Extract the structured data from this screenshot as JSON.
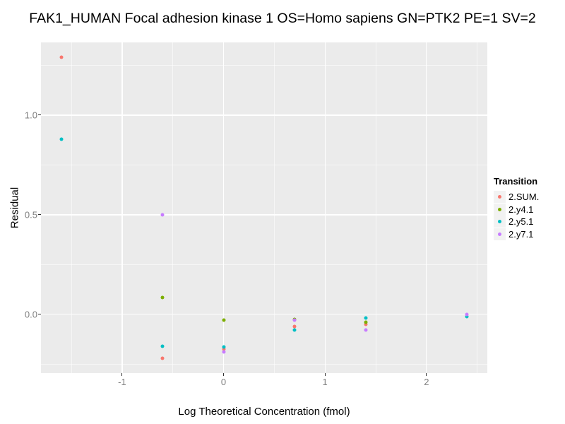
{
  "chart_data": {
    "type": "scatter",
    "title": "FAK1_HUMAN Focal adhesion kinase 1 OS=Homo sapiens GN=PTK2 PE=1 SV=2",
    "xlabel": "Log Theoretical Concentration (fmol)",
    "ylabel": "Residual",
    "xlim": [
      -1.8,
      2.6
    ],
    "ylim": [
      -0.2955,
      1.3655
    ],
    "x_ticks": [
      {
        "value": -1,
        "label": "-1"
      },
      {
        "value": 0,
        "label": "0"
      },
      {
        "value": 1,
        "label": "1"
      },
      {
        "value": 2,
        "label": "2"
      }
    ],
    "y_ticks": [
      {
        "value": 0.0,
        "label": "0.0"
      },
      {
        "value": 0.5,
        "label": "0.5"
      },
      {
        "value": 1.0,
        "label": "1.0"
      }
    ],
    "x_minor": [
      -1.5,
      -0.5,
      0.5,
      1.5,
      2.5
    ],
    "y_minor": [
      -0.25,
      0.25,
      0.75,
      1.25
    ],
    "grid": "on",
    "panel_background": "#EBEBEB",
    "gridline_color": "#FFFFFF",
    "legend_position": "right",
    "legend_title": "Transition",
    "series": [
      {
        "name": "2.SUM.",
        "color": "#F8766D",
        "points": [
          [
            -1.6,
            1.29
          ],
          [
            -0.6,
            -0.22
          ],
          [
            0.0,
            -0.175
          ],
          [
            0.7,
            -0.06
          ],
          [
            1.4,
            -0.05
          ]
        ]
      },
      {
        "name": "2.y4.1",
        "color": "#7CAE00",
        "points": [
          [
            -0.6,
            0.085
          ],
          [
            0.0,
            -0.03
          ],
          [
            0.7,
            -0.025
          ],
          [
            1.4,
            -0.04
          ]
        ]
      },
      {
        "name": "2.y5.1",
        "color": "#00BFC4",
        "points": [
          [
            -1.6,
            0.88
          ],
          [
            -0.6,
            -0.16
          ],
          [
            0.0,
            -0.165
          ],
          [
            0.7,
            -0.08
          ],
          [
            1.4,
            -0.02
          ],
          [
            2.4,
            -0.01
          ]
        ]
      },
      {
        "name": "2.y7.1",
        "color": "#C77CFF",
        "points": [
          [
            -0.6,
            0.5
          ],
          [
            0.0,
            -0.19
          ],
          [
            0.7,
            -0.03
          ],
          [
            1.4,
            -0.08
          ],
          [
            2.4,
            0.0
          ]
        ]
      }
    ]
  }
}
